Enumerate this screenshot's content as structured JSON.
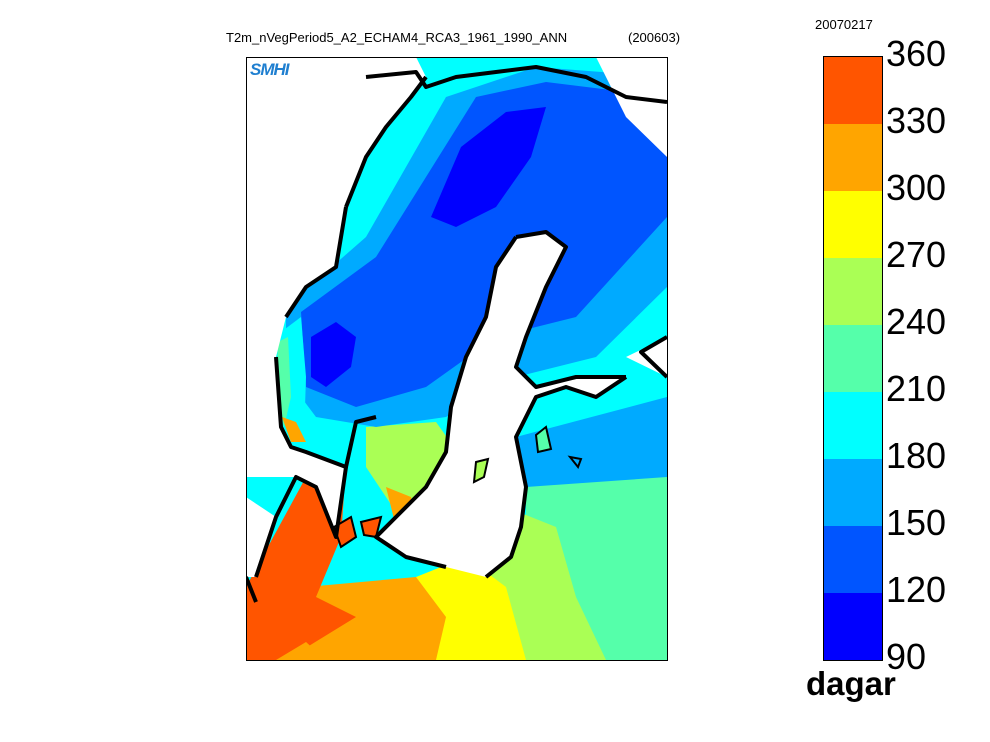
{
  "title": "T2m_nVegPeriod5_A2_ECHAM4_RCA3_1961_1990_ANN",
  "run_code": "(200603)",
  "date_stamp": "20070217",
  "logo_text": "SMHI",
  "colorbar": {
    "unit": "dagar",
    "ticks": [
      "360",
      "330",
      "300",
      "270",
      "240",
      "210",
      "180",
      "150",
      "120",
      "90"
    ],
    "bands": [
      {
        "range": "330-360",
        "color": "#ff5500"
      },
      {
        "range": "300-330",
        "color": "#ffa500"
      },
      {
        "range": "270-300",
        "color": "#ffff00"
      },
      {
        "range": "240-270",
        "color": "#aaff55"
      },
      {
        "range": "210-240",
        "color": "#55ffaa"
      },
      {
        "range": "180-210",
        "color": "#00ffff"
      },
      {
        "range": "150-180",
        "color": "#00aaff"
      },
      {
        "range": "120-150",
        "color": "#0055ff"
      },
      {
        "range": "90-120",
        "color": "#0000ff"
      }
    ]
  }
}
